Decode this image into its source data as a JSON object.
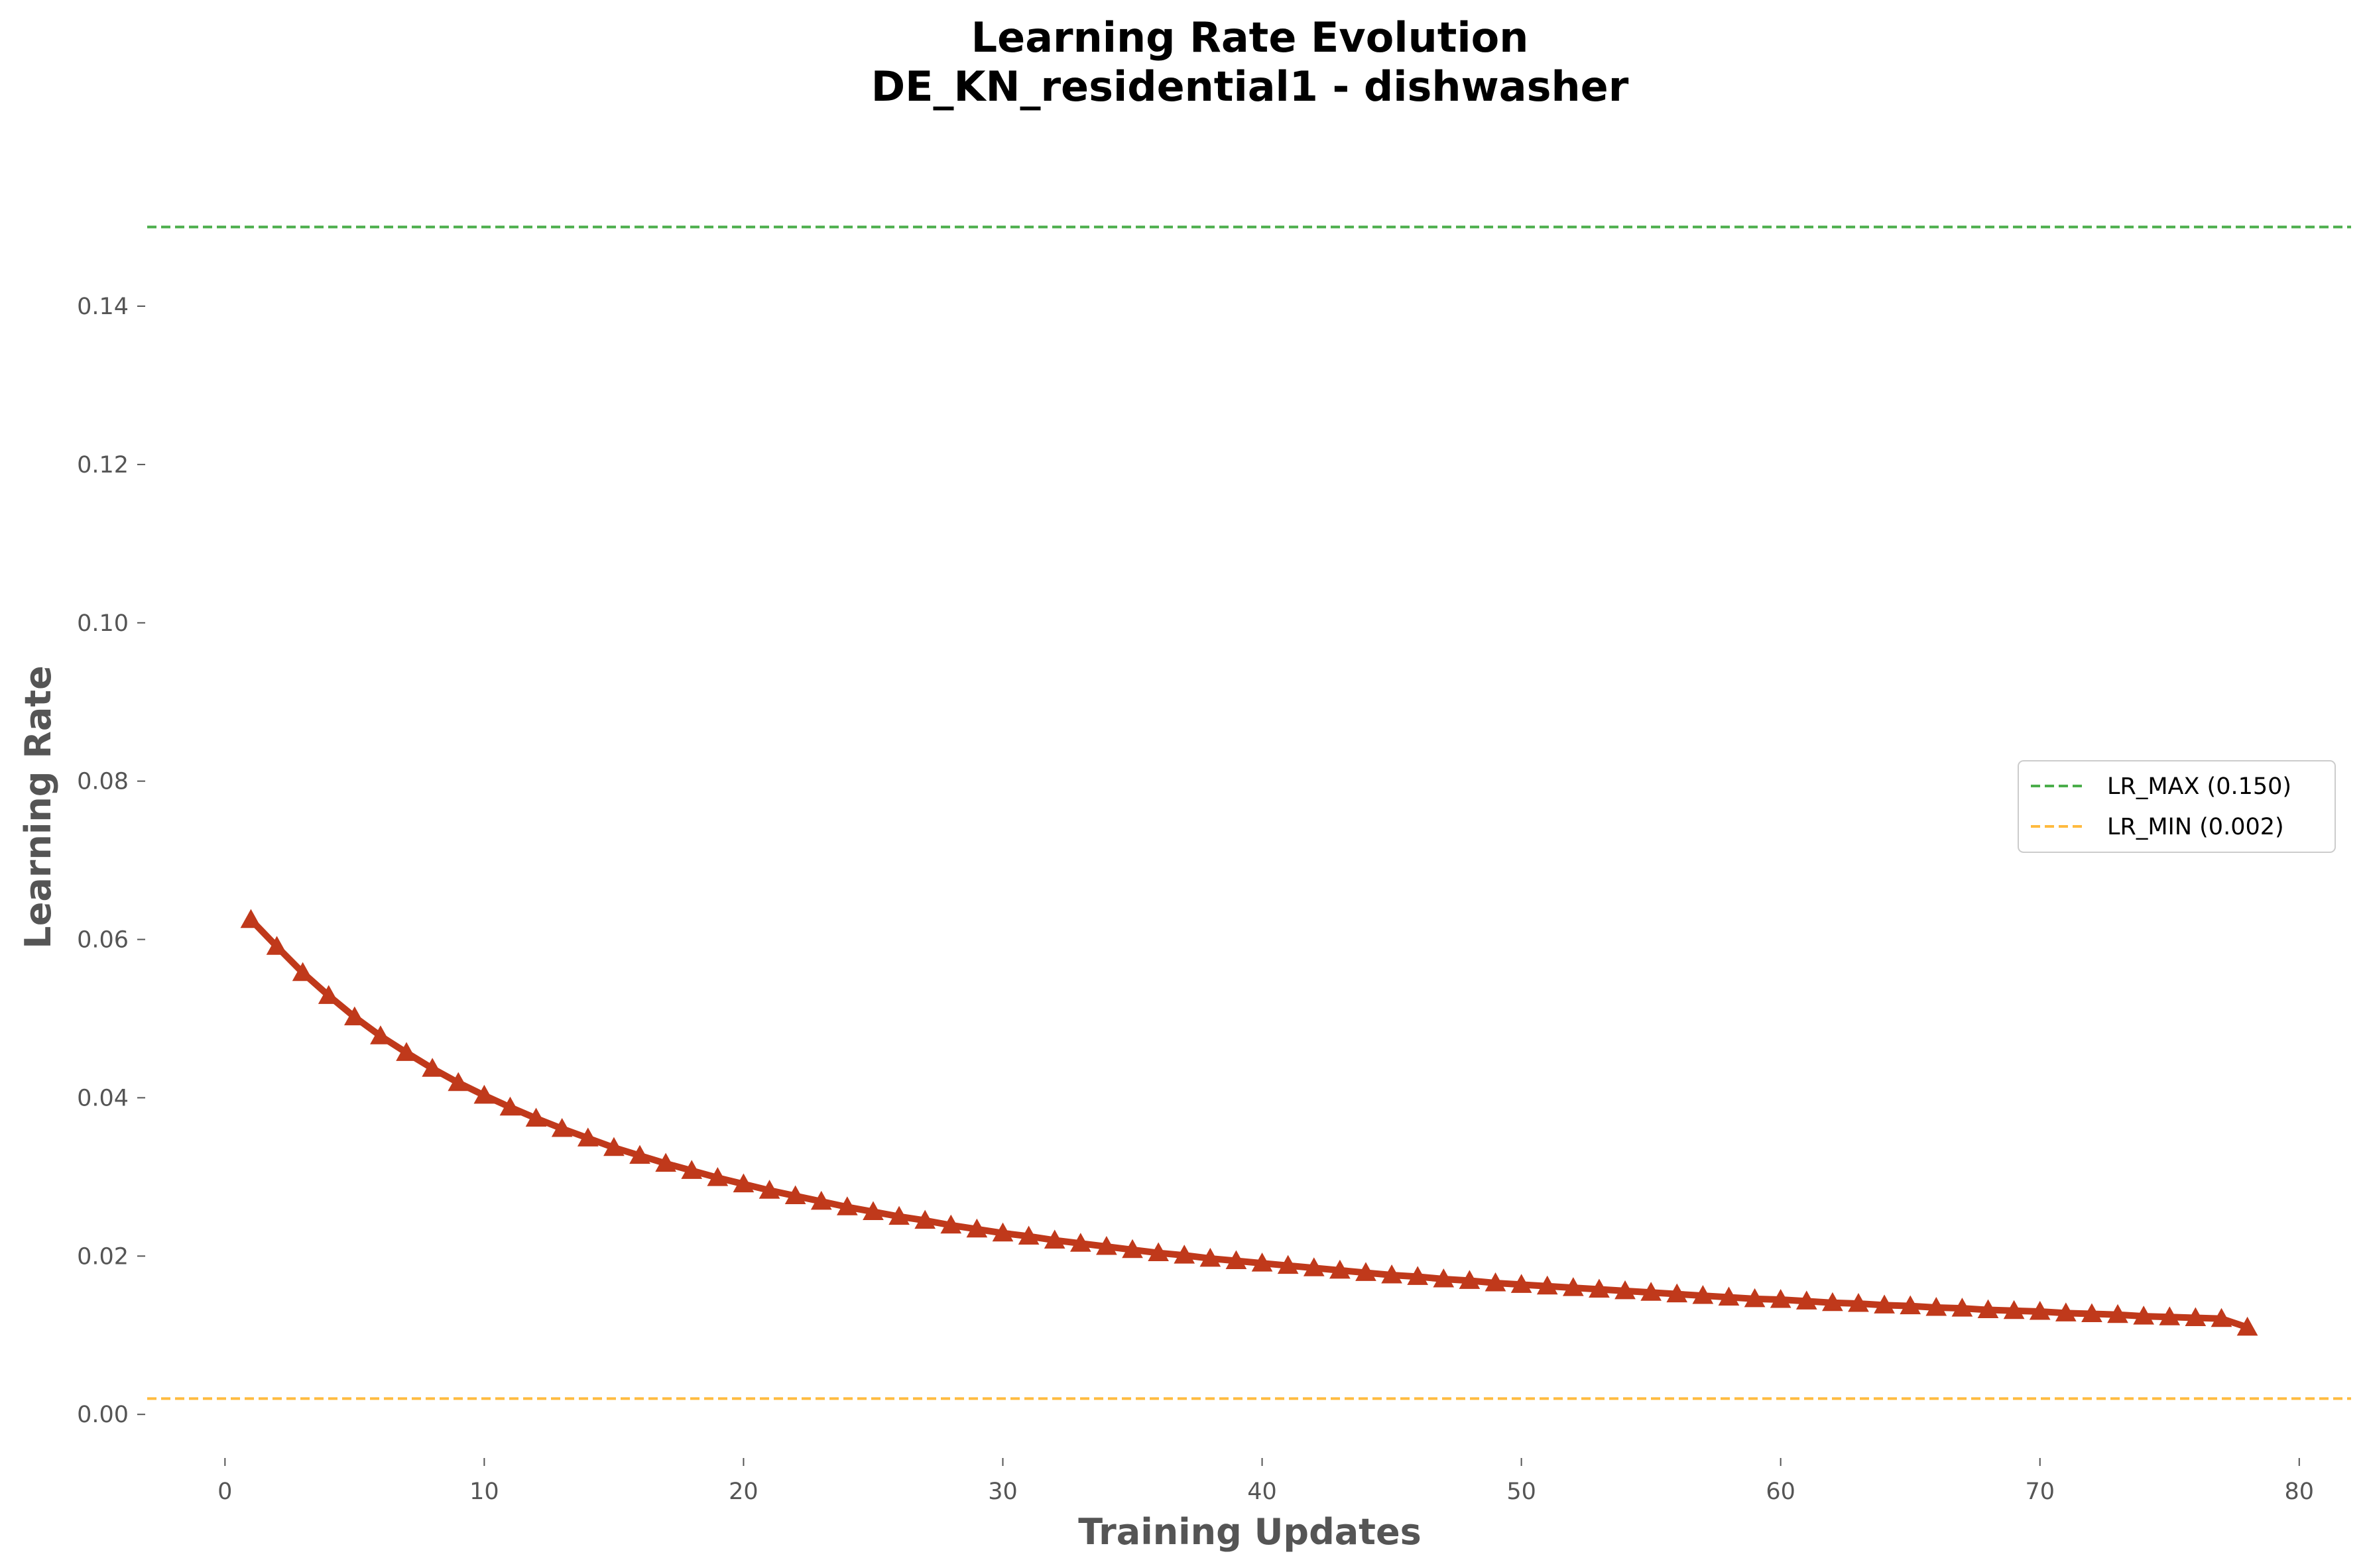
{
  "chart_data": {
    "type": "line",
    "title_line1": "Learning Rate Evolution",
    "title_line2": "DE_KN_residential1 - dishwasher",
    "xlabel": "Training Updates",
    "ylabel": "Learning Rate",
    "xlim": [
      -3,
      82
    ],
    "ylim": [
      -0.004,
      0.158
    ],
    "xticks": [
      0,
      10,
      20,
      30,
      40,
      50,
      60,
      70,
      80
    ],
    "xtick_labels": [
      "0",
      "10",
      "20",
      "30",
      "40",
      "50",
      "60",
      "70",
      "80"
    ],
    "yticks": [
      0.0,
      0.02,
      0.04,
      0.06,
      0.08,
      0.1,
      0.12,
      0.14
    ],
    "ytick_labels": [
      "0.00",
      "0.02",
      "0.04",
      "0.06",
      "0.08",
      "0.10",
      "0.12",
      "0.14"
    ],
    "grid": false,
    "legend_position": "center-right",
    "series": [
      {
        "color": "#c0391b",
        "marker": "triangle-up",
        "x": [
          1,
          2,
          3,
          4,
          5,
          6,
          7,
          8,
          9,
          10,
          11,
          12,
          13,
          14,
          15,
          16,
          17,
          18,
          19,
          20,
          21,
          22,
          23,
          24,
          25,
          26,
          27,
          28,
          29,
          30,
          31,
          32,
          33,
          34,
          35,
          36,
          37,
          38,
          39,
          40,
          41,
          42,
          43,
          44,
          45,
          46,
          47,
          48,
          49,
          50,
          51,
          52,
          53,
          54,
          55,
          56,
          57,
          58,
          59,
          60,
          61,
          62,
          63,
          64,
          65,
          66,
          67,
          68,
          69,
          70,
          71,
          72,
          73,
          74,
          75,
          76,
          77,
          78
        ],
        "y": [
          0.0625,
          0.0591,
          0.0558,
          0.0529,
          0.0502,
          0.0478,
          0.0457,
          0.0437,
          0.0419,
          0.0403,
          0.0388,
          0.0374,
          0.0361,
          0.0349,
          0.0337,
          0.0327,
          0.0317,
          0.0308,
          0.0299,
          0.0291,
          0.0283,
          0.0276,
          0.0269,
          0.0262,
          0.0256,
          0.025,
          0.0245,
          0.0239,
          0.0234,
          0.0229,
          0.0225,
          0.022,
          0.0216,
          0.0212,
          0.0208,
          0.0204,
          0.0201,
          0.0197,
          0.0194,
          0.0191,
          0.0188,
          0.0185,
          0.0182,
          0.0179,
          0.0176,
          0.0174,
          0.0171,
          0.0169,
          0.0166,
          0.0164,
          0.0162,
          0.016,
          0.0158,
          0.0156,
          0.0154,
          0.0152,
          0.015,
          0.0148,
          0.0146,
          0.0145,
          0.0143,
          0.0141,
          0.014,
          0.0138,
          0.0137,
          0.0135,
          0.0134,
          0.0132,
          0.0131,
          0.013,
          0.0128,
          0.0127,
          0.0126,
          0.0124,
          0.0123,
          0.0122,
          0.0121,
          0.011
        ]
      }
    ],
    "reference_lines": [
      {
        "name": "LR_MAX (0.150)",
        "y": 0.15,
        "color": "#2ca02c",
        "style": "dashed"
      },
      {
        "name": "LR_MIN (0.002)",
        "y": 0.002,
        "color": "#ffa500",
        "style": "dashed"
      }
    ]
  }
}
